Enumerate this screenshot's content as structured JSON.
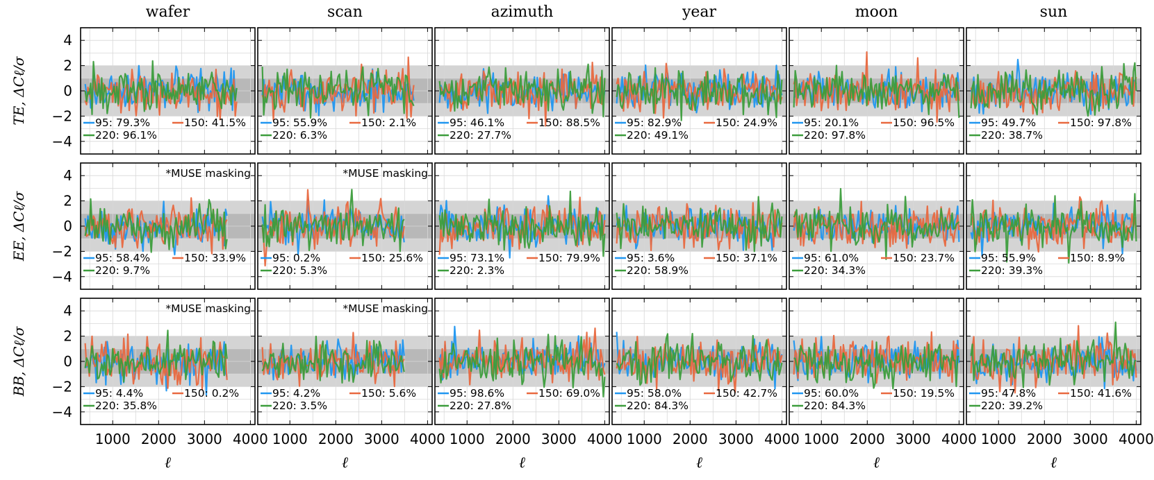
{
  "chart_data": {
    "type": "line",
    "layout": "3 rows x 6 columns grid of line panels",
    "columns": [
      "wafer",
      "scan",
      "azimuth",
      "year",
      "moon",
      "sun"
    ],
    "rows": [
      {
        "key": "TE",
        "ylabel": "TE,  ΔCℓ/σ"
      },
      {
        "key": "EE",
        "ylabel": "EE,  ΔCℓ/σ"
      },
      {
        "key": "BB",
        "ylabel": "BB,  ΔCℓ/σ"
      }
    ],
    "xlabel": "ℓ",
    "xlim": [
      300,
      4100
    ],
    "xticks": [
      "1000",
      "2000",
      "3000",
      "4000"
    ],
    "xtick_values": [
      1000,
      2000,
      3000,
      4000
    ],
    "ylim": [
      -5,
      5
    ],
    "yticks": [
      "4",
      "2",
      "0",
      "−2",
      "−4"
    ],
    "ytick_values": [
      4,
      2,
      0,
      -2,
      -4
    ],
    "bands": [
      {
        "range": [
          -2,
          2
        ],
        "color": "#d4d4d4"
      },
      {
        "range": [
          -1,
          1
        ],
        "color": "#b8b8b8"
      }
    ],
    "grid": true,
    "series_colors": {
      "95": "#1f96f0",
      "150": "#e8683f",
      "220": "#3c9d3c"
    },
    "series_styles": [
      {
        "name": "95",
        "amp": 0.75
      },
      {
        "name": "150",
        "amp": 0.85
      },
      {
        "name": "220",
        "amp": 0.85
      }
    ],
    "note": "*MUSE masking",
    "panels": [
      {
        "row": "TE",
        "col": "wafer",
        "xmax": 3700,
        "note": false,
        "legend": {
          "95": "95: 79.3%",
          "150": "150: 41.5%",
          "220": "220: 96.1%"
        }
      },
      {
        "row": "TE",
        "col": "scan",
        "xmax": 3700,
        "note": false,
        "legend": {
          "95": "95: 55.9%",
          "150": "150: 2.1%",
          "220": "220: 6.3%"
        }
      },
      {
        "row": "TE",
        "col": "azimuth",
        "xmax": 4000,
        "note": false,
        "legend": {
          "95": "95: 46.1%",
          "150": "150: 88.5%",
          "220": "220: 27.7%"
        }
      },
      {
        "row": "TE",
        "col": "year",
        "xmax": 4000,
        "note": false,
        "legend": {
          "95": "95: 82.9%",
          "150": "150: 24.9%",
          "220": "220: 49.1%"
        }
      },
      {
        "row": "TE",
        "col": "moon",
        "xmax": 4000,
        "note": false,
        "legend": {
          "95": "95: 20.1%",
          "150": "150: 96.5%",
          "220": "220: 97.8%"
        }
      },
      {
        "row": "TE",
        "col": "sun",
        "xmax": 4000,
        "note": false,
        "legend": {
          "95": "95: 49.7%",
          "150": "150: 97.8%",
          "220": "220: 38.7%"
        }
      },
      {
        "row": "EE",
        "col": "wafer",
        "xmax": 3500,
        "note": true,
        "legend": {
          "95": "95: 58.4%",
          "150": "150: 33.9%",
          "220": "220: 9.7%"
        }
      },
      {
        "row": "EE",
        "col": "scan",
        "xmax": 3500,
        "note": true,
        "legend": {
          "95": "95: 0.2%",
          "150": "150: 25.6%",
          "220": "220: 5.3%"
        }
      },
      {
        "row": "EE",
        "col": "azimuth",
        "xmax": 4000,
        "note": false,
        "legend": {
          "95": "95: 73.1%",
          "150": "150: 79.9%",
          "220": "220: 2.3%"
        }
      },
      {
        "row": "EE",
        "col": "year",
        "xmax": 4000,
        "note": false,
        "legend": {
          "95": "95: 3.6%",
          "150": "150: 37.1%",
          "220": "220: 58.9%"
        }
      },
      {
        "row": "EE",
        "col": "moon",
        "xmax": 4000,
        "note": false,
        "legend": {
          "95": "95: 61.0%",
          "150": "150: 23.7%",
          "220": "220: 34.3%"
        }
      },
      {
        "row": "EE",
        "col": "sun",
        "xmax": 4000,
        "note": false,
        "legend": {
          "95": "95: 55.9%",
          "150": "150: 8.9%",
          "220": "220: 39.3%"
        }
      },
      {
        "row": "BB",
        "col": "wafer",
        "xmax": 3500,
        "note": true,
        "legend": {
          "95": "95: 4.4%",
          "150": "150: 0.2%",
          "220": "220: 35.8%"
        }
      },
      {
        "row": "BB",
        "col": "scan",
        "xmax": 3500,
        "note": true,
        "legend": {
          "95": "95: 4.2%",
          "150": "150: 5.6%",
          "220": "220: 3.5%"
        }
      },
      {
        "row": "BB",
        "col": "azimuth",
        "xmax": 4000,
        "note": false,
        "legend": {
          "95": "95: 98.6%",
          "150": "150: 69.0%",
          "220": "220: 27.8%"
        }
      },
      {
        "row": "BB",
        "col": "year",
        "xmax": 4000,
        "note": false,
        "legend": {
          "95": "95: 58.0%",
          "150": "150: 42.7%",
          "220": "220: 84.3%"
        }
      },
      {
        "row": "BB",
        "col": "moon",
        "xmax": 4000,
        "note": false,
        "legend": {
          "95": "95: 60.0%",
          "150": "150: 19.5%",
          "220": "220: 84.3%"
        }
      },
      {
        "row": "BB",
        "col": "sun",
        "xmax": 4000,
        "note": false,
        "legend": {
          "95": "95: 47.8%",
          "150": "150: 41.6%",
          "220": "220: 39.2%"
        }
      }
    ]
  }
}
